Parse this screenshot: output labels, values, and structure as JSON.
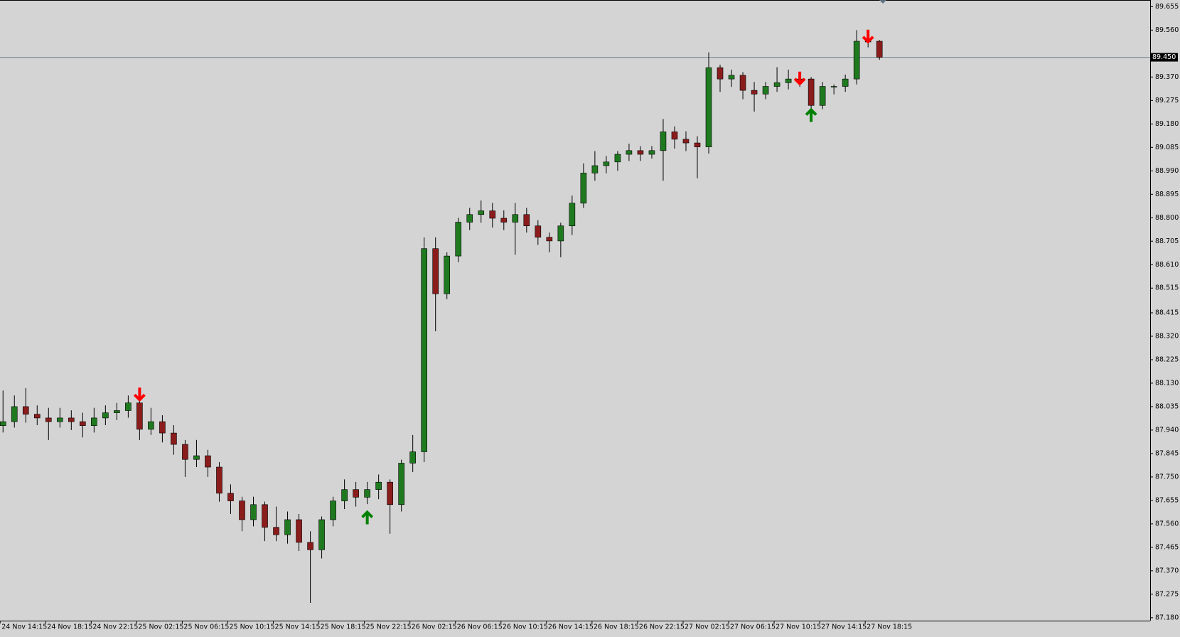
{
  "chart_data": {
    "type": "candlestick",
    "up_color": "#1f7a1f",
    "down_color": "#8b1c1c",
    "wick_color": "#000000",
    "categories": [
      "24 Nov 14:15",
      null,
      null,
      null,
      "24 Nov 18:15",
      null,
      null,
      null,
      "24 Nov 22:15",
      null,
      null,
      null,
      "25 Nov 02:15",
      null,
      null,
      null,
      "25 Nov 06:15",
      null,
      null,
      null,
      "25 Nov 10:15",
      null,
      null,
      null,
      "25 Nov 14:15",
      null,
      null,
      null,
      "25 Nov 18:15",
      null,
      null,
      null,
      "25 Nov 22:15",
      null,
      null,
      null,
      "26 Nov 02:15",
      null,
      null,
      null,
      "26 Nov 06:15",
      null,
      null,
      null,
      "26 Nov 10:15",
      null,
      null,
      null,
      "26 Nov 14:15",
      null,
      null,
      null,
      "26 Nov 18:15",
      null,
      null,
      null,
      "26 Nov 22:15",
      null,
      null,
      null,
      "27 Nov 02:15",
      null,
      null,
      null,
      "27 Nov 06:15",
      null,
      null,
      null,
      "27 Nov 10:15",
      null,
      null,
      null,
      "27 Nov 14:15",
      null,
      null,
      null,
      "27 Nov 18:15",
      null
    ],
    "open": [
      87.958,
      87.974,
      88.035,
      88.004,
      87.989,
      87.974,
      87.989,
      87.974,
      87.958,
      87.989,
      88.01,
      88.019,
      88.05,
      87.943,
      87.974,
      87.928,
      87.882,
      87.821,
      87.836,
      87.79,
      87.684,
      87.653,
      87.577,
      87.638,
      87.546,
      87.516,
      87.577,
      87.485,
      87.455,
      87.577,
      87.653,
      87.699,
      87.668,
      87.699,
      87.729,
      87.638,
      87.806,
      87.852,
      88.675,
      88.492,
      88.645,
      88.782,
      88.813,
      88.828,
      88.798,
      88.782,
      88.813,
      88.767,
      88.721,
      88.706,
      88.767,
      88.859,
      88.981,
      89.011,
      89.026,
      89.057,
      89.072,
      89.057,
      89.072,
      89.148,
      89.118,
      89.103,
      89.087,
      89.408,
      89.362,
      89.377,
      89.316,
      89.301,
      89.332,
      89.347,
      89.362,
      89.362,
      89.255,
      89.332,
      89.332,
      89.362,
      89.515,
      89.515
    ],
    "high": [
      88.1,
      88.08,
      88.11,
      88.04,
      88.03,
      88.03,
      88.02,
      88.01,
      88.03,
      88.04,
      88.05,
      88.08,
      88.07,
      88.03,
      88.0,
      87.96,
      87.9,
      87.9,
      87.86,
      87.81,
      87.72,
      87.67,
      87.67,
      87.65,
      87.63,
      87.61,
      87.6,
      87.53,
      87.59,
      87.67,
      87.74,
      87.73,
      87.73,
      87.76,
      87.74,
      87.82,
      87.92,
      88.72,
      88.72,
      88.66,
      88.8,
      88.84,
      88.87,
      88.86,
      88.83,
      88.86,
      88.84,
      88.79,
      88.74,
      88.78,
      88.89,
      89.02,
      89.07,
      89.05,
      89.07,
      89.1,
      89.09,
      89.09,
      89.2,
      89.17,
      89.15,
      89.13,
      89.47,
      89.42,
      89.4,
      89.39,
      89.35,
      89.35,
      89.41,
      89.4,
      89.38,
      89.37,
      89.35,
      89.34,
      89.38,
      89.56,
      89.54,
      89.52
    ],
    "low": [
      87.93,
      87.95,
      87.97,
      87.96,
      87.9,
      87.95,
      87.94,
      87.91,
      87.93,
      87.96,
      87.98,
      87.99,
      87.9,
      87.92,
      87.89,
      87.84,
      87.75,
      87.79,
      87.75,
      87.65,
      87.6,
      87.53,
      87.55,
      87.49,
      87.49,
      87.48,
      87.45,
      87.24,
      87.42,
      87.55,
      87.62,
      87.63,
      87.64,
      87.66,
      87.52,
      87.61,
      87.77,
      87.81,
      88.34,
      88.47,
      88.62,
      88.75,
      88.78,
      88.76,
      88.75,
      88.65,
      88.74,
      88.69,
      88.66,
      88.64,
      88.73,
      88.84,
      88.95,
      88.98,
      88.99,
      89.03,
      89.03,
      89.04,
      88.95,
      89.08,
      89.07,
      88.96,
      89.06,
      89.31,
      89.33,
      89.28,
      89.23,
      89.28,
      89.31,
      89.32,
      89.33,
      89.21,
      89.24,
      89.3,
      89.31,
      89.34,
      89.49,
      89.44
    ],
    "close": [
      87.974,
      88.035,
      88.004,
      87.989,
      87.974,
      87.989,
      87.974,
      87.958,
      87.989,
      88.01,
      88.019,
      88.05,
      87.943,
      87.974,
      87.928,
      87.882,
      87.821,
      87.836,
      87.79,
      87.684,
      87.653,
      87.577,
      87.638,
      87.546,
      87.516,
      87.577,
      87.485,
      87.455,
      87.577,
      87.653,
      87.699,
      87.668,
      87.699,
      87.729,
      87.638,
      87.806,
      87.852,
      88.675,
      88.492,
      88.645,
      88.782,
      88.813,
      88.828,
      88.798,
      88.782,
      88.813,
      88.767,
      88.721,
      88.706,
      88.767,
      88.859,
      88.981,
      89.011,
      89.026,
      89.057,
      89.072,
      89.057,
      89.072,
      89.148,
      89.118,
      89.103,
      89.087,
      89.408,
      89.362,
      89.377,
      89.316,
      89.301,
      89.332,
      89.347,
      89.362,
      89.362,
      89.255,
      89.332,
      89.332,
      89.362,
      89.515,
      89.515,
      89.45
    ],
    "sell_signals": {
      "x": [
        12,
        70,
        76
      ],
      "y": [
        88.06,
        89.34,
        89.51
      ],
      "color": "#ff0000"
    },
    "buy_signals": {
      "x": [
        32,
        71
      ],
      "y": [
        87.61,
        89.24
      ],
      "color": "#008000"
    },
    "current_price": {
      "value": 89.45,
      "label": "89.450"
    },
    "ylim": [
      87.168,
      89.682
    ],
    "yticks": [
      89.655,
      {
        "value": 89.56,
        "label": "89.560"
      },
      {
        "value": 89.37,
        "label": "89.370"
      },
      89.275,
      {
        "value": 89.18,
        "label": "89.180"
      },
      89.085,
      {
        "value": 88.99,
        "label": "88.990"
      },
      88.895,
      {
        "value": 88.8,
        "label": "88.800"
      },
      88.705,
      {
        "value": 88.61,
        "label": "88.610"
      },
      88.515,
      88.415,
      {
        "value": 88.32,
        "label": "88.320"
      },
      88.225,
      {
        "value": 88.13,
        "label": "88.130"
      },
      88.035,
      {
        "value": 87.94,
        "label": "87.940"
      },
      87.845,
      {
        "value": 87.75,
        "label": "87.750"
      },
      87.655,
      {
        "value": 87.56,
        "label": "87.560"
      },
      87.465,
      {
        "value": 87.37,
        "label": "87.370"
      },
      87.275,
      {
        "value": 87.18,
        "label": "87.180"
      }
    ]
  }
}
